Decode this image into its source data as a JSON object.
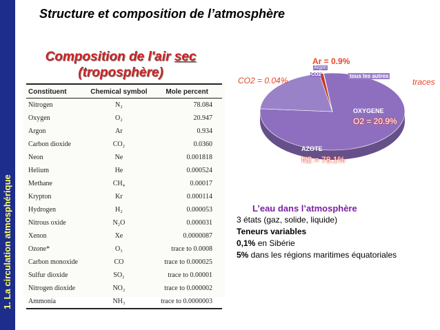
{
  "sidebar": {
    "label": "1. La circulation atmosphérique"
  },
  "slide": {
    "title": "Structure et composition de l’atmosphère"
  },
  "composition": {
    "title_line1_prefix": "Composition de l'air ",
    "title_line1_underlined": "sec",
    "title_line2": "(troposphère)"
  },
  "table": {
    "headers": [
      "Constituent",
      "Chemical symbol",
      "Mole percent"
    ],
    "rows": [
      {
        "name": "Nitrogen",
        "symbol": "N₂",
        "percent": "78.084"
      },
      {
        "name": "Oxygen",
        "symbol": "O₂",
        "percent": "20.947"
      },
      {
        "name": "Argon",
        "symbol": "Ar",
        "percent": "0.934"
      },
      {
        "name": "Carbon dioxide",
        "symbol": "CO₂",
        "percent": "0.0360"
      },
      {
        "name": "Neon",
        "symbol": "Ne",
        "percent": "0.001818"
      },
      {
        "name": "Helium",
        "symbol": "He",
        "percent": "0.000524"
      },
      {
        "name": "Methane",
        "symbol": "CH₄",
        "percent": "0.00017"
      },
      {
        "name": "Krypton",
        "symbol": "Kr",
        "percent": "0.000114"
      },
      {
        "name": "Hydrogen",
        "symbol": "H₂",
        "percent": "0.000053"
      },
      {
        "name": "Nitrous oxide",
        "symbol": "N₂O",
        "percent": "0.000031"
      },
      {
        "name": "Xenon",
        "symbol": "Xe",
        "percent": "0.0000087"
      },
      {
        "name": "Ozone*",
        "symbol": "O₃",
        "percent": "trace to 0.0008"
      },
      {
        "name": "Carbon monoxide",
        "symbol": "CO",
        "percent": "trace to 0.000025"
      },
      {
        "name": "Sulfur dioxide",
        "symbol": "SO₂",
        "percent": "trace to 0.00001"
      },
      {
        "name": "Nitrogen dioxide",
        "symbol": "NO₂",
        "percent": "trace to 0.000002"
      },
      {
        "name": "Ammonia",
        "symbol": "NH₃",
        "percent": "trace to 0.0000003"
      }
    ]
  },
  "pie": {
    "slices": [
      {
        "name": "AZOTE",
        "value": 78.1,
        "color": "#8e6fbf"
      },
      {
        "name": "OXYGENE",
        "value": 20.9,
        "color": "#9a82c8"
      },
      {
        "name": "Argon",
        "value": 0.9,
        "color": "#c0392b"
      },
      {
        "name": "CO2",
        "value": 0.04,
        "color": "#5a3a8a"
      },
      {
        "name": "tous les autres",
        "value": 0.06,
        "color": "#e8c23a"
      }
    ],
    "annotations": {
      "ar": "Ar = 0.9%",
      "co2": "CO2 = 0.04%",
      "traces": "traces",
      "o2": "O2 = 20.9%",
      "n2": "N2 = 78.1%"
    },
    "colors": {
      "annotation_red": "#e8452a",
      "annotation_purple": "#9b30d9"
    }
  },
  "water": {
    "title": "L’eau dans l’atmosphère",
    "line1": "3 états (gaz, solide, liquide)",
    "line2": "Teneurs variables",
    "line3_bold": "0,1%",
    "line3_rest": " en Sibérie",
    "line4_bold": "5%",
    "line4_rest": " dans les régions maritimes équatoriales"
  }
}
